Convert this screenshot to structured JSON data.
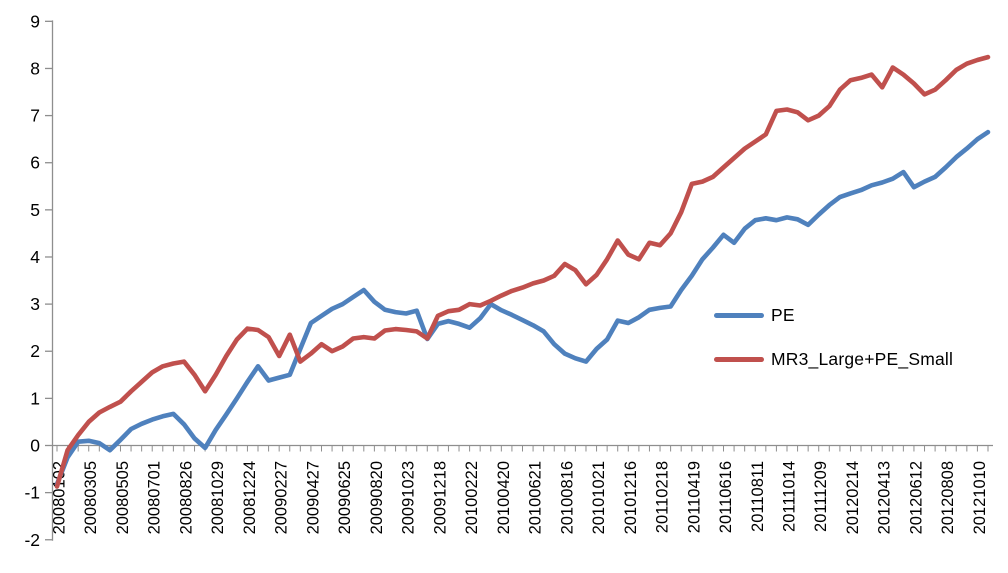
{
  "chart_data": {
    "type": "line",
    "title": "",
    "xlabel": "",
    "ylabel": "",
    "grid": false,
    "legend_position": "middle-right",
    "axis_color": "#8e8e8e",
    "text_color": "#000000",
    "background": "#ffffff",
    "ylim": [
      -2,
      9
    ],
    "y_ticks": [
      9,
      8,
      7,
      6,
      5,
      4,
      3,
      2,
      1,
      0,
      -1,
      -2
    ],
    "x_points_per_category": 3,
    "categories": [
      "20080102",
      "20080305",
      "20080505",
      "20080701",
      "20080826",
      "20081029",
      "20081224",
      "20090227",
      "20090427",
      "20090625",
      "20090820",
      "20091023",
      "20091218",
      "20100222",
      "20100420",
      "20100621",
      "20100816",
      "20101021",
      "20101216",
      "20110218",
      "20110419",
      "20110616",
      "20110811",
      "20111014",
      "20111209",
      "20120214",
      "20120413",
      "20120612",
      "20120808",
      "20121010"
    ],
    "series": [
      {
        "name": "PE",
        "color": "#4F81BD",
        "values": [
          -0.82,
          -0.25,
          0.08,
          0.1,
          0.05,
          -0.1,
          0.12,
          0.35,
          0.46,
          0.55,
          0.62,
          0.67,
          0.45,
          0.15,
          -0.05,
          0.33,
          0.66,
          1.0,
          1.35,
          1.68,
          1.38,
          1.44,
          1.5,
          2.05,
          2.6,
          2.75,
          2.9,
          3.0,
          3.15,
          3.3,
          3.05,
          2.88,
          2.83,
          2.8,
          2.86,
          2.26,
          2.58,
          2.64,
          2.58,
          2.5,
          2.7,
          3.0,
          2.87,
          2.77,
          2.66,
          2.55,
          2.42,
          2.15,
          1.95,
          1.85,
          1.78,
          2.05,
          2.25,
          2.65,
          2.6,
          2.72,
          2.88,
          2.92,
          2.95,
          3.3,
          3.6,
          3.95,
          4.2,
          4.47,
          4.3,
          4.6,
          4.78,
          4.82,
          4.78,
          4.84,
          4.8,
          4.68,
          4.9,
          5.1,
          5.27,
          5.35,
          5.42,
          5.52,
          5.58,
          5.66,
          5.8,
          5.48,
          5.6,
          5.7,
          5.9,
          6.12,
          6.3,
          6.5,
          6.65
        ]
      },
      {
        "name": "MR3_Large+PE_Small",
        "color": "#C0504D",
        "values": [
          -0.87,
          -0.1,
          0.22,
          0.5,
          0.7,
          0.82,
          0.93,
          1.15,
          1.35,
          1.55,
          1.68,
          1.74,
          1.78,
          1.5,
          1.15,
          1.5,
          1.9,
          2.25,
          2.48,
          2.45,
          2.3,
          1.9,
          2.35,
          1.78,
          1.95,
          2.15,
          2.0,
          2.1,
          2.27,
          2.3,
          2.27,
          2.44,
          2.47,
          2.45,
          2.42,
          2.27,
          2.75,
          2.85,
          2.88,
          3.0,
          2.97,
          3.07,
          3.18,
          3.28,
          3.35,
          3.44,
          3.5,
          3.6,
          3.85,
          3.72,
          3.42,
          3.62,
          3.95,
          4.35,
          4.05,
          3.95,
          4.3,
          4.25,
          4.5,
          4.95,
          5.55,
          5.6,
          5.7,
          5.9,
          6.1,
          6.3,
          6.45,
          6.6,
          7.1,
          7.13,
          7.07,
          6.9,
          7.0,
          7.2,
          7.55,
          7.75,
          7.8,
          7.87,
          7.6,
          8.02,
          7.87,
          7.68,
          7.45,
          7.55,
          7.75,
          7.97,
          8.1,
          8.18,
          8.24
        ]
      }
    ]
  }
}
